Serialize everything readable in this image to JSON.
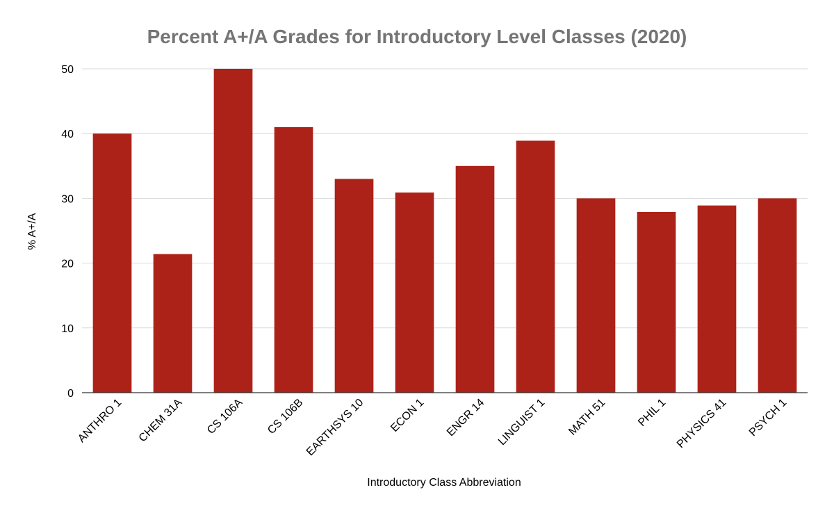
{
  "chart_data": {
    "type": "bar",
    "title": "Percent A+/A Grades for Introductory Level Classes (2020)",
    "xlabel": "Introductory Class Abbreviation",
    "ylabel": "% A+/A",
    "categories": [
      "ANTHRO 1",
      "CHEM 31A",
      "CS 106A",
      "CS 106B",
      "EARTHSYS 10",
      "ECON 1",
      "ENGR 14",
      "LINGUIST 1",
      "MATH 51",
      "PHIL 1",
      "PHYSICS 41",
      "PSYCH 1"
    ],
    "values": [
      40,
      21.4,
      50,
      41,
      33,
      30.9,
      35,
      38.9,
      30,
      27.9,
      28.9,
      30
    ],
    "ylim": [
      0,
      50
    ],
    "yticks": [
      0,
      10,
      20,
      30,
      40,
      50
    ],
    "grid": true,
    "legend": "none",
    "bar_color": "#ad2218"
  }
}
